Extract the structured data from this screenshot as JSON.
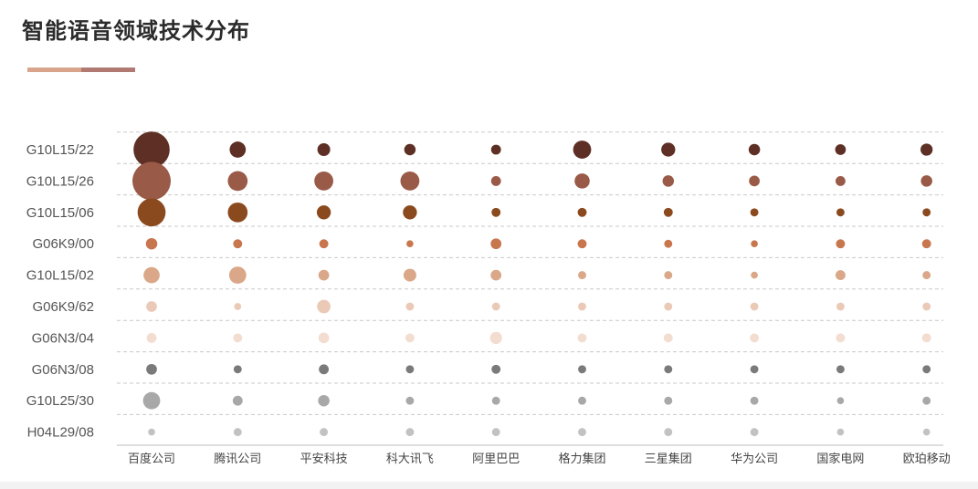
{
  "title": "智能语音领域技术分布",
  "colors": {
    "accent_left": "#d9a48c",
    "accent_right": "#b07a72",
    "grid": "#c9c9c9",
    "axis": "#bdbdbd",
    "bottom_band": "#f2f2f2"
  },
  "chart_data": {
    "type": "bubble",
    "title": "智能语音领域技术分布",
    "xlabel": "",
    "ylabel": "",
    "grid": true,
    "x_categories": [
      "百度公司",
      "腾讯公司",
      "平安科技",
      "科大讯飞",
      "阿里巴巴",
      "格力集团",
      "三星集团",
      "华为公司",
      "国家电网",
      "欧珀移动"
    ],
    "y_categories": [
      "G10L15/22",
      "G10L15/26",
      "G10L15/06",
      "G06K9/00",
      "G10L15/02",
      "G06K9/62",
      "G06N3/04",
      "G06N3/08",
      "G10L25/30",
      "H04L29/08"
    ],
    "series": [
      {
        "row": "G10L15/22",
        "color": "#5e2f24",
        "values": [
          40,
          8,
          5,
          4,
          3,
          10,
          6,
          4,
          3.5,
          4.5
        ]
      },
      {
        "row": "G10L15/26",
        "color": "#9a5a48",
        "values": [
          45,
          12,
          11,
          11,
          3,
          7,
          4,
          3.5,
          3,
          4
        ]
      },
      {
        "row": "G10L15/06",
        "color": "#8b4a1e",
        "values": [
          24,
          12,
          6,
          6,
          2.5,
          2.5,
          2.5,
          2,
          2,
          2
        ]
      },
      {
        "row": "G06K9/00",
        "color": "#c8764e",
        "values": [
          4,
          2.5,
          2.5,
          1.5,
          3.5,
          2.5,
          2,
          1.5,
          2.5,
          2.5
        ]
      },
      {
        "row": "G10L15/02",
        "color": "#daa888",
        "values": [
          8,
          9,
          3.5,
          5,
          3.5,
          2,
          2,
          1.5,
          3,
          2
        ]
      },
      {
        "row": "G06K9/62",
        "color": "#ebc9b7",
        "values": [
          3.5,
          1.5,
          5.5,
          2,
          2,
          2,
          2,
          2,
          2,
          2
        ]
      },
      {
        "row": "G06N3/04",
        "color": "#f3ddd1",
        "values": [
          3,
          2.5,
          3.5,
          2.5,
          4.5,
          2.5,
          2.5,
          2.5,
          2.5,
          2.5
        ]
      },
      {
        "row": "G06N3/08",
        "color": "#7a7a7a",
        "values": [
          3.5,
          2,
          3,
          2,
          2.5,
          2,
          2,
          2,
          2,
          2
        ]
      },
      {
        "row": "G10L25/30",
        "color": "#a8a8a8",
        "values": [
          9,
          3,
          4,
          2,
          2,
          2,
          2,
          2,
          1.5,
          2
        ]
      },
      {
        "row": "H04L29/08",
        "color": "#c2c2c2",
        "values": [
          1.5,
          2,
          2,
          2,
          2,
          2,
          2,
          2,
          1.5,
          1.5
        ]
      }
    ]
  }
}
